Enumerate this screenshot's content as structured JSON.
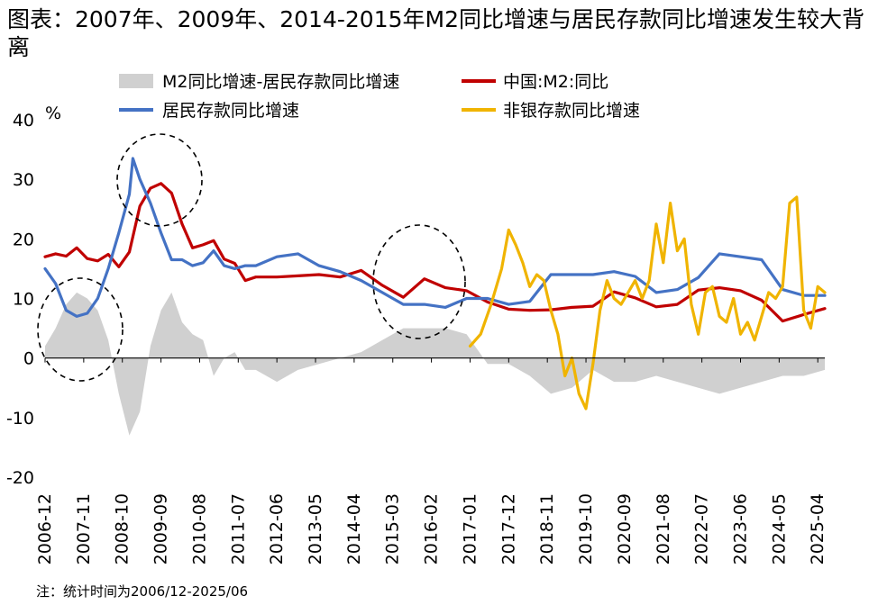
{
  "title": "图表：2007年、2009年、2014-2015年M2同比增速与居民存款同比增速发生较大背离",
  "note": "注：统计时间为2006/12-2025/06",
  "colors": {
    "gap": "#d0d0d0",
    "m2": "#c00000",
    "household": "#4472c4",
    "nonbank": "#f0b400"
  },
  "chart_data": {
    "type": "line",
    "ylabel": "%",
    "ylim": [
      -20,
      40
    ],
    "yticks": [
      -20,
      -10,
      0,
      10,
      20,
      30,
      40
    ],
    "x_range": [
      "2006-12",
      "2025-06"
    ],
    "x_tick_labels": [
      "2006-12",
      "2007-11",
      "2008-10",
      "2009-09",
      "2010-08",
      "2011-07",
      "2012-06",
      "2013-05",
      "2014-04",
      "2015-03",
      "2016-02",
      "2017-01",
      "2017-12",
      "2018-11",
      "2019-10",
      "2020-09",
      "2021-08",
      "2022-07",
      "2023-06",
      "2024-05",
      "2025-04"
    ],
    "legend": [
      "M2同比增速-居民存款同比增速",
      "中国:M2:同比",
      "居民存款同比增速",
      "非银存款同比增速"
    ],
    "series": [
      {
        "name": "M2同比增速-居民存款同比增速",
        "style": "area",
        "x": [
          "2006-12",
          "2007-03",
          "2007-06",
          "2007-09",
          "2007-12",
          "2008-03",
          "2008-06",
          "2008-09",
          "2008-12",
          "2009-03",
          "2009-06",
          "2009-09",
          "2009-12",
          "2010-03",
          "2010-06",
          "2010-09",
          "2010-12",
          "2011-03",
          "2011-06",
          "2011-09",
          "2011-12",
          "2012-06",
          "2012-12",
          "2013-06",
          "2013-12",
          "2014-06",
          "2014-12",
          "2015-06",
          "2015-12",
          "2016-06",
          "2016-12",
          "2017-06",
          "2017-12",
          "2018-06",
          "2018-12",
          "2019-06",
          "2019-12",
          "2020-06",
          "2020-12",
          "2021-06",
          "2021-12",
          "2022-06",
          "2022-12",
          "2023-06",
          "2023-12",
          "2024-06",
          "2024-12",
          "2025-06"
        ],
        "values": [
          2,
          5,
          9,
          11,
          10,
          8,
          3,
          -6,
          -13,
          -9,
          2,
          8,
          11,
          6,
          4,
          3,
          -3,
          0,
          1,
          -2,
          -2,
          -4,
          -2,
          -1,
          0,
          1,
          3,
          5,
          5,
          5,
          4,
          -1,
          -1,
          -3,
          -6,
          -5,
          -2,
          -4,
          -4,
          -3,
          -4,
          -5,
          -6,
          -5,
          -4,
          -3,
          -3,
          -2
        ]
      },
      {
        "name": "中国:M2:同比",
        "style": "line",
        "x": [
          "2006-12",
          "2007-03",
          "2007-06",
          "2007-09",
          "2007-12",
          "2008-03",
          "2008-06",
          "2008-09",
          "2008-12",
          "2009-03",
          "2009-06",
          "2009-09",
          "2009-12",
          "2010-03",
          "2010-06",
          "2010-09",
          "2010-12",
          "2011-03",
          "2011-06",
          "2011-09",
          "2011-12",
          "2012-06",
          "2012-12",
          "2013-06",
          "2013-12",
          "2014-06",
          "2014-12",
          "2015-06",
          "2015-12",
          "2016-06",
          "2016-12",
          "2017-06",
          "2017-12",
          "2018-06",
          "2018-12",
          "2019-06",
          "2019-12",
          "2020-06",
          "2020-12",
          "2021-06",
          "2021-12",
          "2022-06",
          "2022-12",
          "2023-06",
          "2023-12",
          "2024-06",
          "2024-12",
          "2025-06"
        ],
        "values": [
          17,
          17.5,
          17.1,
          18.5,
          16.7,
          16.3,
          17.4,
          15.3,
          17.8,
          25.5,
          28.5,
          29.3,
          27.7,
          22.5,
          18.5,
          19,
          19.7,
          16.6,
          15.9,
          13,
          13.6,
          13.6,
          13.8,
          14,
          13.6,
          14.7,
          12.2,
          10.2,
          13.3,
          11.8,
          11.3,
          9.4,
          8.2,
          8,
          8.1,
          8.5,
          8.7,
          11.1,
          10.1,
          8.6,
          9,
          11.4,
          11.8,
          11.3,
          9.7,
          6.2,
          7.3,
          8.3
        ]
      },
      {
        "name": "居民存款同比增速",
        "style": "line",
        "x": [
          "2006-12",
          "2007-03",
          "2007-06",
          "2007-09",
          "2007-12",
          "2008-03",
          "2008-06",
          "2008-09",
          "2008-12",
          "2009-01",
          "2009-03",
          "2009-06",
          "2009-09",
          "2009-12",
          "2010-03",
          "2010-06",
          "2010-09",
          "2010-12",
          "2011-03",
          "2011-06",
          "2011-09",
          "2011-12",
          "2012-06",
          "2012-12",
          "2013-06",
          "2013-12",
          "2014-06",
          "2014-12",
          "2015-06",
          "2015-12",
          "2016-06",
          "2016-12",
          "2017-06",
          "2017-12",
          "2018-06",
          "2018-12",
          "2019-06",
          "2019-12",
          "2020-06",
          "2020-12",
          "2021-06",
          "2021-12",
          "2022-06",
          "2022-12",
          "2023-06",
          "2023-12",
          "2024-06",
          "2024-12",
          "2025-06"
        ],
        "values": [
          15,
          12.5,
          8,
          7,
          7.5,
          10,
          15,
          21,
          27.5,
          33.5,
          30,
          26,
          21,
          16.5,
          16.5,
          15.5,
          16,
          18,
          15.5,
          15,
          15.5,
          15.5,
          17,
          17.5,
          15.5,
          14.5,
          13,
          11,
          9,
          9,
          8.5,
          10,
          10,
          9,
          9.5,
          14,
          14,
          14,
          14.5,
          13.7,
          11,
          11.5,
          13.5,
          17.5,
          17,
          16.5,
          11.5,
          10.5,
          10.5
        ]
      },
      {
        "name": "非银存款同比增速",
        "style": "line",
        "x": [
          "2017-01",
          "2017-04",
          "2017-07",
          "2017-10",
          "2017-12",
          "2018-02",
          "2018-04",
          "2018-06",
          "2018-08",
          "2018-10",
          "2018-12",
          "2019-02",
          "2019-04",
          "2019-06",
          "2019-08",
          "2019-10",
          "2019-12",
          "2020-02",
          "2020-04",
          "2020-06",
          "2020-08",
          "2020-10",
          "2020-12",
          "2021-02",
          "2021-04",
          "2021-06",
          "2021-08",
          "2021-10",
          "2021-12",
          "2022-02",
          "2022-04",
          "2022-06",
          "2022-08",
          "2022-10",
          "2022-12",
          "2023-02",
          "2023-04",
          "2023-06",
          "2023-08",
          "2023-10",
          "2023-12",
          "2024-02",
          "2024-04",
          "2024-06",
          "2024-08",
          "2024-10",
          "2024-12",
          "2025-02",
          "2025-04",
          "2025-06"
        ],
        "values": [
          2,
          4,
          9,
          15,
          21.5,
          19,
          16,
          12,
          14,
          13,
          8,
          4,
          -3,
          0,
          -6,
          -8.5,
          -1,
          8,
          13,
          10,
          9,
          11,
          13,
          10,
          13,
          22.5,
          16,
          26,
          18,
          20,
          9,
          4,
          11,
          12,
          7,
          6,
          10,
          4,
          6,
          3,
          7,
          11,
          10,
          12,
          26,
          27,
          8,
          5,
          12,
          11
        ]
      }
    ]
  }
}
